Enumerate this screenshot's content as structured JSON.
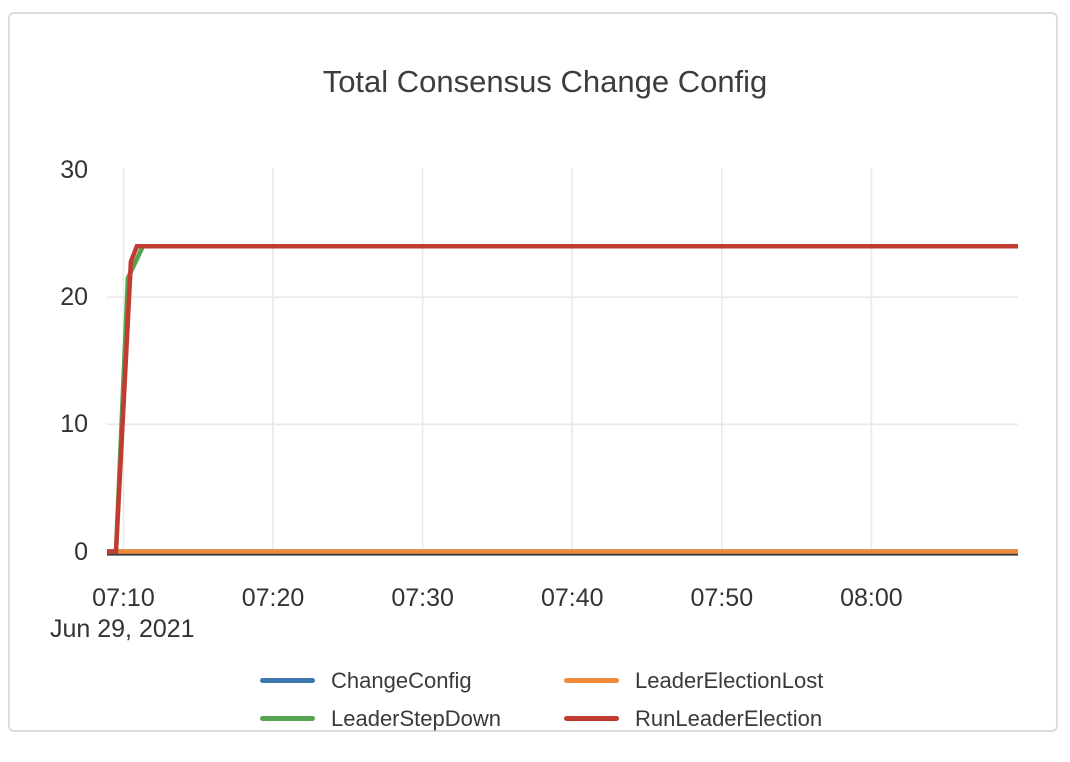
{
  "chart_data": {
    "type": "line",
    "title": "Total Consensus Change Config",
    "x_axis": {
      "type": "time",
      "date_label": "Jun 29, 2021",
      "ticks": [
        {
          "label": "07:10",
          "minute": 10
        },
        {
          "label": "07:20",
          "minute": 20
        },
        {
          "label": "07:30",
          "minute": 30
        },
        {
          "label": "07:40",
          "minute": 40
        },
        {
          "label": "07:50",
          "minute": 50
        },
        {
          "label": "08:00",
          "minute": 60
        }
      ],
      "range_minutes_after_07_00": [
        8.9,
        69.8
      ],
      "vertical_gridlines": true
    },
    "y_axis": {
      "ticks": [
        0,
        10,
        20,
        30
      ],
      "range": [
        0,
        30
      ],
      "gridline_values": [
        10,
        20
      ]
    },
    "series": [
      {
        "name": "ChangeConfig",
        "color": "#3d76ad",
        "points": [
          [
            8.9,
            0
          ],
          [
            69.8,
            0
          ]
        ]
      },
      {
        "name": "LeaderElectionLost",
        "color": "#ee8a3a",
        "points": [
          [
            8.9,
            0
          ],
          [
            69.8,
            0
          ]
        ]
      },
      {
        "name": "LeaderStepDown",
        "color": "#57a24e",
        "points": [
          [
            8.9,
            0
          ],
          [
            9.5,
            0
          ],
          [
            10.3,
            21.5
          ],
          [
            11.3,
            24
          ],
          [
            69.8,
            24
          ]
        ]
      },
      {
        "name": "RunLeaderElection",
        "color": "#c23b31",
        "points": [
          [
            8.9,
            0
          ],
          [
            9.5,
            0
          ],
          [
            10.5,
            22.8
          ],
          [
            10.9,
            24
          ],
          [
            69.8,
            24
          ]
        ]
      }
    ],
    "plateau_value": 24,
    "legend": {
      "position": "bottom",
      "columns": 2
    },
    "colors": {
      "axis_line": "#3a3a3a",
      "gridline": "#e9e9e9",
      "title_text": "#3d3d3d",
      "tick_text": "#333333"
    }
  }
}
